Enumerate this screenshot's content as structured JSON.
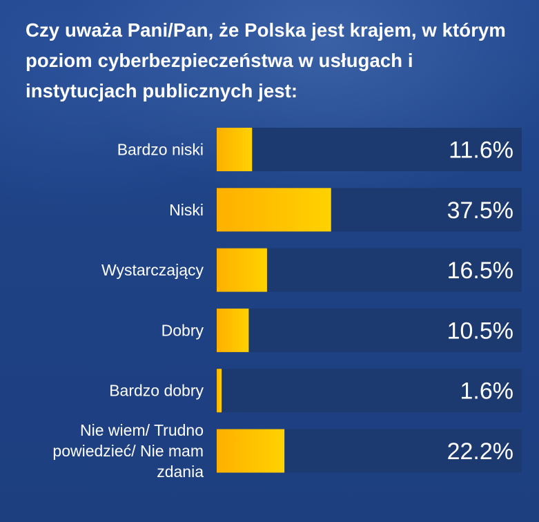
{
  "title": "Czy uważa Pani/Pan, że Polska jest krajem, w którym poziom cyberbezpieczeństwa w usługach i instytucjach publicznych jest:",
  "colors": {
    "background": "#1f4285",
    "track": "#1c3a70",
    "bar_start": "#ffb000",
    "bar_end": "#ffd200",
    "text": "#ffffff"
  },
  "chart_data": {
    "type": "bar",
    "orientation": "horizontal",
    "categories": [
      "Bardzo niski",
      "Niski",
      "Wystarczający",
      "Dobry",
      "Bardzo dobry",
      "Nie wiem/ Trudno powiedzieć/ Nie mam zdania"
    ],
    "category_lines": [
      [
        "Bardzo niski"
      ],
      [
        "Niski"
      ],
      [
        "Wystarczający"
      ],
      [
        "Dobry"
      ],
      [
        "Bardzo dobry"
      ],
      [
        "Nie wiem/ Trudno",
        "powiedzieć/ Nie mam",
        "zdania"
      ]
    ],
    "values": [
      11.6,
      37.5,
      16.5,
      10.5,
      1.6,
      22.2
    ],
    "value_labels": [
      "11.6%",
      "37.5%",
      "16.5%",
      "10.5%",
      "1.6%",
      "22.2%"
    ],
    "unit": "%",
    "xlim": [
      0,
      100
    ],
    "grid": false,
    "legend": "none"
  }
}
